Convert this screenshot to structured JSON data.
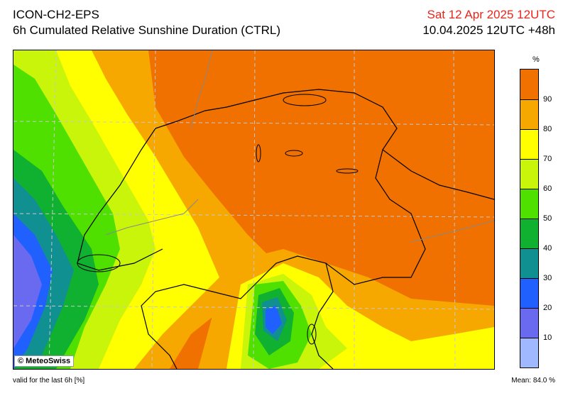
{
  "header": {
    "model": "ICON-CH2-EPS",
    "product": "6h Cumulated Relative Sunshine Duration (CTRL)",
    "valid_date": "Sat 12 Apr 2025 12UTC",
    "run": "10.04.2025 12UTC +48h"
  },
  "map": {
    "credit": "© MeteoSwiss",
    "colors": {
      "orange": "#f07000",
      "light_orange": "#f7a800",
      "yellow": "#ffff00",
      "yellow_green": "#c8f50a",
      "green": "#50e000",
      "dark_green": "#10b030",
      "teal": "#109090",
      "blue": "#2060ff",
      "purple_blue": "#6a6af0",
      "light_blue": "#a0b8ff"
    }
  },
  "legend": {
    "unit": "%",
    "labels": [
      "90",
      "80",
      "70",
      "60",
      "50",
      "40",
      "30",
      "20",
      "10"
    ],
    "colors": [
      "#f07000",
      "#f7a800",
      "#ffff00",
      "#c8f50a",
      "#50e000",
      "#10b030",
      "#109090",
      "#2060ff",
      "#6a6af0",
      "#a0b8ff"
    ]
  },
  "footer": {
    "validity": "valid for the last 6h [%]",
    "mean": "Mean:  84.0 %"
  }
}
